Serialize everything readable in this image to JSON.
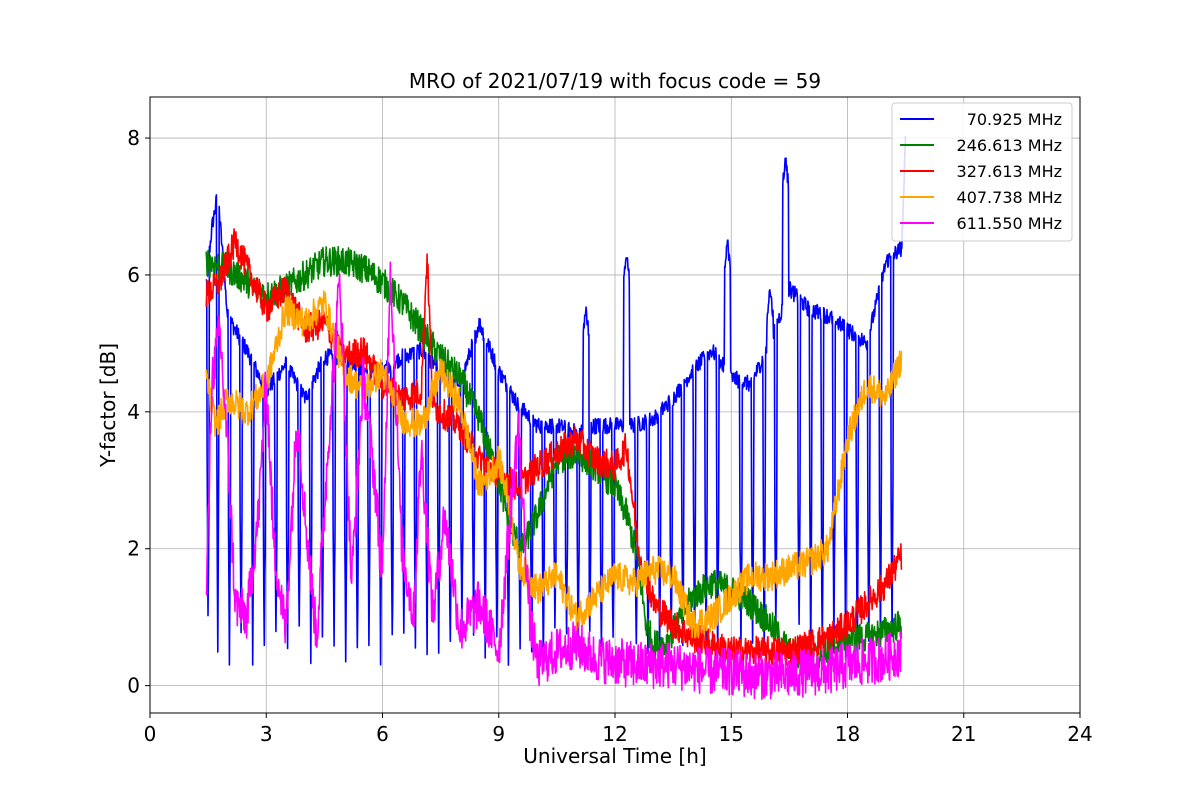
{
  "chart_data": {
    "type": "line",
    "title": "MRO of 2021/07/19 with focus code = 59",
    "xlabel": "Universal Time [h]",
    "ylabel": "Y-factor [dB]",
    "xlim": [
      0,
      24
    ],
    "ylim": [
      -0.4,
      8.6
    ],
    "xticks": [
      0,
      3,
      6,
      9,
      12,
      15,
      18,
      21,
      24
    ],
    "yticks": [
      0,
      2,
      4,
      6,
      8
    ],
    "grid": true,
    "legend_position": "top-right",
    "series": [
      {
        "name": "70.925 MHz",
        "color": "#0000ff",
        "baseline": [
          [
            1.45,
            5.9
          ],
          [
            1.6,
            6.7
          ],
          [
            1.75,
            7.2
          ],
          [
            2.0,
            5.4
          ],
          [
            2.5,
            4.9
          ],
          [
            3.0,
            4.3
          ],
          [
            3.5,
            4.7
          ],
          [
            4.0,
            4.2
          ],
          [
            4.5,
            4.8
          ],
          [
            5.0,
            4.8
          ],
          [
            5.5,
            4.6
          ],
          [
            6.0,
            4.6
          ],
          [
            6.5,
            4.8
          ],
          [
            7.0,
            4.9
          ],
          [
            7.5,
            4.6
          ],
          [
            8.0,
            4.4
          ],
          [
            8.5,
            5.3
          ],
          [
            9.0,
            4.6
          ],
          [
            9.5,
            4.1
          ],
          [
            10.0,
            3.8
          ],
          [
            10.5,
            3.8
          ],
          [
            11.0,
            3.7
          ],
          [
            11.5,
            3.8
          ],
          [
            12.0,
            3.8
          ],
          [
            12.5,
            3.8
          ],
          [
            13.0,
            3.9
          ],
          [
            13.5,
            4.2
          ],
          [
            14.0,
            4.6
          ],
          [
            14.5,
            4.9
          ],
          [
            15.0,
            4.5
          ],
          [
            15.5,
            4.4
          ],
          [
            16.0,
            5.0
          ],
          [
            16.5,
            5.8
          ],
          [
            17.0,
            5.5
          ],
          [
            17.5,
            5.4
          ],
          [
            18.0,
            5.2
          ],
          [
            18.5,
            5.0
          ],
          [
            19.0,
            6.2
          ],
          [
            19.4,
            6.4
          ],
          [
            19.5,
            8.0
          ]
        ],
        "dips": [
          1.5,
          1.75,
          2.05,
          2.35,
          2.65,
          2.95,
          3.25,
          3.55,
          3.85,
          4.15,
          4.45,
          4.75,
          5.05,
          5.35,
          5.65,
          5.95,
          6.25,
          6.55,
          6.85,
          7.15,
          7.45,
          7.75,
          8.05,
          8.35,
          8.65,
          8.95,
          9.25,
          9.55,
          9.85,
          10.15,
          10.45,
          10.75,
          11.05,
          11.35,
          11.65,
          11.95,
          12.25,
          12.55,
          12.85,
          13.15,
          13.45,
          13.75,
          14.05,
          14.35,
          14.65,
          14.95,
          15.25,
          15.55,
          15.85,
          16.15,
          16.45,
          16.75,
          17.05,
          17.35,
          17.65,
          17.95,
          18.25,
          18.55,
          18.85,
          19.15
        ],
        "dip_floor": 0.3,
        "spikes": [
          [
            12.3,
            6.3
          ],
          [
            14.9,
            6.5
          ],
          [
            16.4,
            7.7
          ],
          [
            11.25,
            5.5
          ],
          [
            16.0,
            5.8
          ]
        ]
      },
      {
        "name": "246.613 MHz",
        "color": "#008000",
        "points": [
          [
            1.45,
            6.2
          ],
          [
            2.0,
            6.1
          ],
          [
            2.5,
            5.9
          ],
          [
            3.0,
            5.7
          ],
          [
            3.5,
            5.8
          ],
          [
            4.0,
            6.0
          ],
          [
            4.5,
            6.2
          ],
          [
            5.0,
            6.2
          ],
          [
            5.5,
            6.1
          ],
          [
            6.0,
            5.9
          ],
          [
            6.5,
            5.6
          ],
          [
            7.0,
            5.2
          ],
          [
            7.5,
            4.8
          ],
          [
            8.0,
            4.5
          ],
          [
            8.5,
            3.9
          ],
          [
            9.0,
            3.0
          ],
          [
            9.3,
            2.3
          ],
          [
            9.6,
            2.0
          ],
          [
            10.0,
            2.5
          ],
          [
            10.5,
            3.3
          ],
          [
            11.0,
            3.4
          ],
          [
            11.5,
            3.2
          ],
          [
            12.0,
            2.9
          ],
          [
            12.3,
            2.5
          ],
          [
            12.6,
            1.8
          ],
          [
            12.8,
            0.9
          ],
          [
            13.0,
            0.6
          ],
          [
            13.3,
            0.6
          ],
          [
            13.6,
            0.9
          ],
          [
            14.0,
            1.3
          ],
          [
            14.5,
            1.5
          ],
          [
            15.0,
            1.4
          ],
          [
            15.5,
            1.2
          ],
          [
            16.0,
            0.9
          ],
          [
            16.5,
            0.5
          ],
          [
            17.0,
            0.3
          ],
          [
            17.5,
            0.5
          ],
          [
            18.0,
            0.7
          ],
          [
            18.5,
            0.7
          ],
          [
            19.0,
            0.8
          ],
          [
            19.4,
            0.9
          ]
        ]
      },
      {
        "name": "327.613 MHz",
        "color": "#ff0000",
        "points": [
          [
            1.45,
            5.7
          ],
          [
            1.8,
            5.9
          ],
          [
            2.2,
            6.5
          ],
          [
            2.5,
            6.1
          ],
          [
            3.0,
            5.5
          ],
          [
            3.5,
            5.8
          ],
          [
            4.0,
            5.2
          ],
          [
            4.5,
            5.3
          ],
          [
            5.0,
            4.8
          ],
          [
            5.5,
            4.9
          ],
          [
            6.0,
            4.4
          ],
          [
            6.5,
            4.2
          ],
          [
            7.0,
            4.3
          ],
          [
            7.15,
            6.3
          ],
          [
            7.3,
            4.1
          ],
          [
            7.5,
            4.0
          ],
          [
            8.0,
            3.8
          ],
          [
            8.5,
            3.3
          ],
          [
            9.0,
            3.1
          ],
          [
            9.5,
            2.9
          ],
          [
            10.0,
            3.2
          ],
          [
            10.5,
            3.4
          ],
          [
            11.0,
            3.6
          ],
          [
            11.5,
            3.3
          ],
          [
            12.0,
            3.2
          ],
          [
            12.3,
            3.5
          ],
          [
            12.6,
            2.0
          ],
          [
            13.0,
            1.2
          ],
          [
            13.5,
            0.9
          ],
          [
            14.0,
            0.7
          ],
          [
            14.5,
            0.6
          ],
          [
            15.0,
            0.5
          ],
          [
            15.5,
            0.5
          ],
          [
            16.0,
            0.5
          ],
          [
            16.5,
            0.5
          ],
          [
            17.0,
            0.6
          ],
          [
            17.5,
            0.7
          ],
          [
            18.0,
            0.9
          ],
          [
            18.5,
            1.2
          ],
          [
            19.0,
            1.5
          ],
          [
            19.4,
            1.9
          ]
        ]
      },
      {
        "name": "407.738 MHz",
        "color": "#ffa500",
        "points": [
          [
            1.45,
            4.5
          ],
          [
            1.7,
            3.8
          ],
          [
            2.0,
            4.2
          ],
          [
            2.5,
            4.0
          ],
          [
            3.0,
            4.4
          ],
          [
            3.5,
            5.5
          ],
          [
            4.0,
            5.3
          ],
          [
            4.5,
            5.6
          ],
          [
            5.0,
            4.6
          ],
          [
            5.5,
            4.3
          ],
          [
            6.0,
            4.6
          ],
          [
            6.5,
            3.9
          ],
          [
            7.0,
            3.8
          ],
          [
            7.5,
            4.6
          ],
          [
            8.0,
            4.1
          ],
          [
            8.5,
            2.9
          ],
          [
            9.0,
            3.3
          ],
          [
            9.3,
            2.6
          ],
          [
            9.5,
            1.8
          ],
          [
            10.0,
            1.4
          ],
          [
            10.5,
            1.6
          ],
          [
            11.0,
            1.0
          ],
          [
            11.5,
            1.3
          ],
          [
            12.0,
            1.6
          ],
          [
            12.5,
            1.5
          ],
          [
            13.0,
            1.7
          ],
          [
            13.5,
            1.6
          ],
          [
            14.0,
            0.9
          ],
          [
            14.5,
            1.0
          ],
          [
            15.0,
            1.3
          ],
          [
            15.5,
            1.6
          ],
          [
            16.0,
            1.6
          ],
          [
            16.5,
            1.7
          ],
          [
            17.0,
            1.8
          ],
          [
            17.5,
            2.0
          ],
          [
            18.0,
            3.6
          ],
          [
            18.5,
            4.4
          ],
          [
            19.0,
            4.2
          ],
          [
            19.4,
            4.8
          ]
        ]
      },
      {
        "name": "611.550 MHz",
        "color": "#ff00ff",
        "points": [
          [
            1.45,
            1.2
          ],
          [
            1.6,
            4.5
          ],
          [
            1.8,
            5.2
          ],
          [
            2.0,
            3.5
          ],
          [
            2.2,
            1.2
          ],
          [
            2.5,
            1.0
          ],
          [
            2.8,
            2.5
          ],
          [
            3.0,
            4.5
          ],
          [
            3.2,
            2.0
          ],
          [
            3.5,
            0.8
          ],
          [
            3.8,
            4.0
          ],
          [
            4.0,
            2.5
          ],
          [
            4.3,
            0.7
          ],
          [
            4.6,
            3.5
          ],
          [
            4.9,
            6.0
          ],
          [
            5.2,
            1.5
          ],
          [
            5.5,
            4.5
          ],
          [
            5.8,
            3.0
          ],
          [
            6.0,
            1.5
          ],
          [
            6.2,
            6.2
          ],
          [
            6.5,
            2.0
          ],
          [
            6.8,
            1.0
          ],
          [
            7.0,
            3.5
          ],
          [
            7.3,
            1.0
          ],
          [
            7.6,
            2.5
          ],
          [
            8.0,
            0.8
          ],
          [
            8.5,
            1.2
          ],
          [
            9.0,
            0.5
          ],
          [
            9.3,
            2.5
          ],
          [
            9.5,
            3.8
          ],
          [
            9.8,
            1.0
          ],
          [
            10.0,
            0.3
          ],
          [
            10.5,
            0.5
          ],
          [
            11.0,
            0.6
          ],
          [
            11.5,
            0.4
          ],
          [
            12.0,
            0.35
          ],
          [
            12.5,
            0.3
          ],
          [
            13.0,
            0.3
          ],
          [
            13.5,
            0.3
          ],
          [
            14.0,
            0.25
          ],
          [
            14.5,
            0.2
          ],
          [
            15.0,
            0.2
          ],
          [
            15.5,
            0.15
          ],
          [
            16.0,
            0.15
          ],
          [
            16.5,
            0.15
          ],
          [
            17.0,
            0.2
          ],
          [
            17.5,
            0.2
          ],
          [
            18.0,
            0.3
          ],
          [
            18.5,
            0.35
          ],
          [
            19.0,
            0.4
          ],
          [
            19.4,
            0.5
          ]
        ]
      }
    ]
  }
}
